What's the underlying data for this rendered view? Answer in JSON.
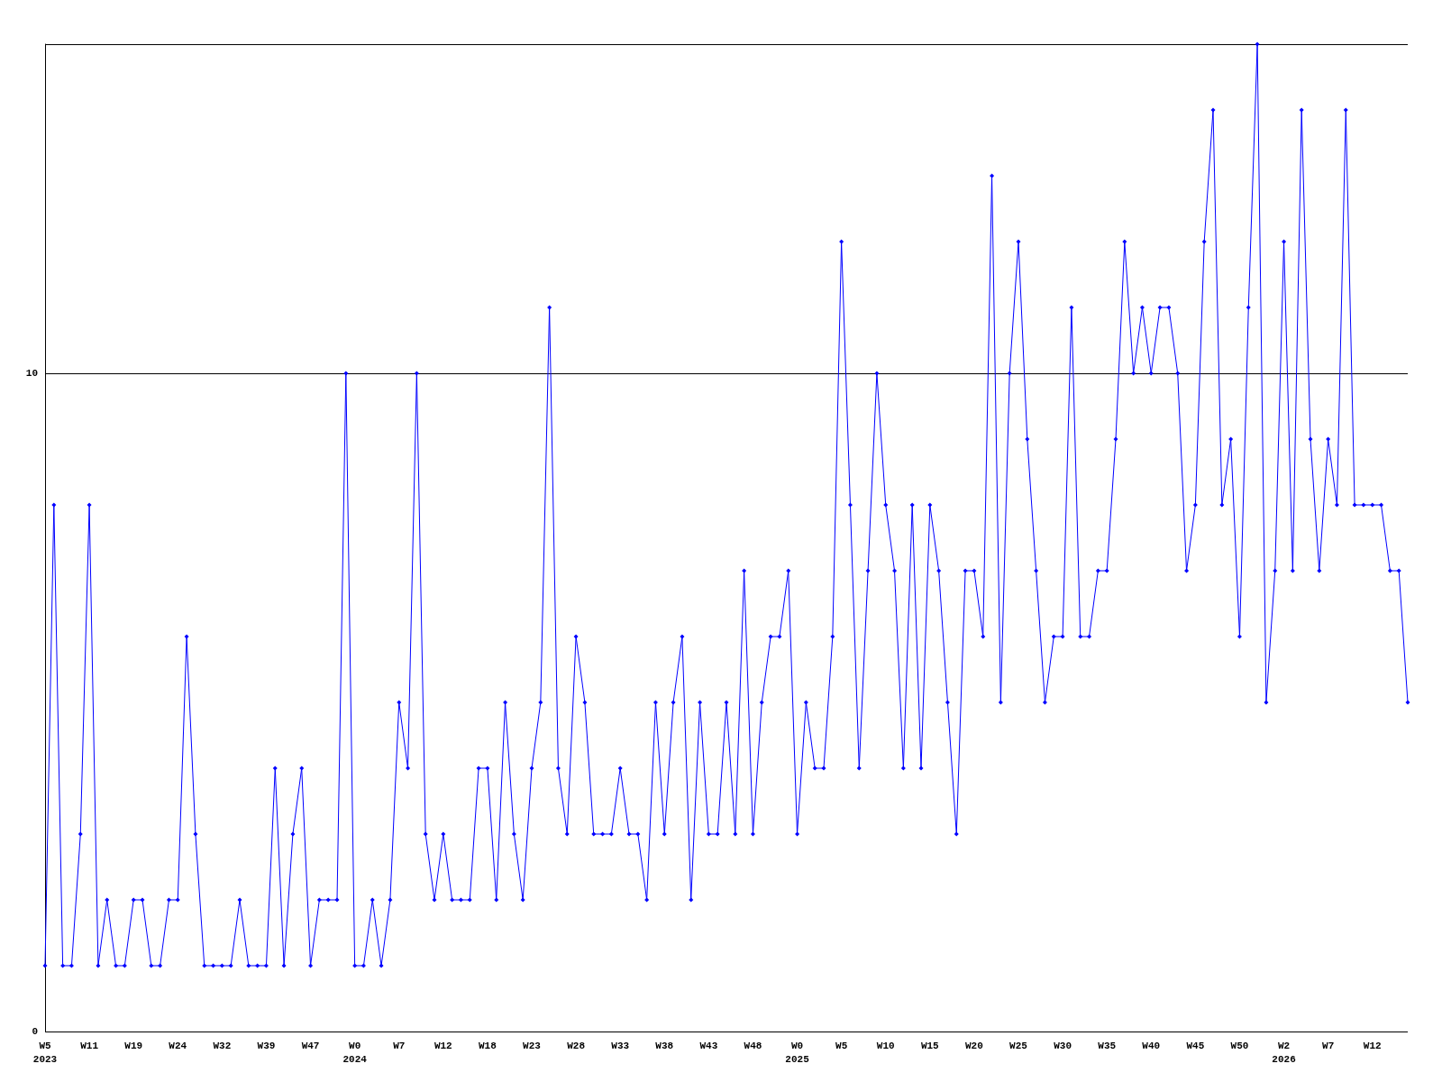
{
  "chart_data": {
    "type": "line",
    "categories": [
      "W5\n2023",
      null,
      null,
      null,
      null,
      "W11",
      null,
      null,
      null,
      null,
      "W19",
      null,
      null,
      null,
      null,
      "W24",
      null,
      null,
      null,
      null,
      "W32",
      null,
      null,
      null,
      null,
      "W39",
      null,
      null,
      null,
      null,
      "W47",
      null,
      null,
      null,
      null,
      "W0\n2024",
      null,
      null,
      null,
      null,
      "W7",
      null,
      null,
      null,
      null,
      "W12",
      null,
      null,
      null,
      null,
      "W18",
      null,
      null,
      null,
      null,
      "W23",
      null,
      null,
      null,
      null,
      "W28",
      null,
      null,
      null,
      null,
      "W33",
      null,
      null,
      null,
      null,
      "W38",
      null,
      null,
      null,
      null,
      "W43",
      null,
      null,
      null,
      null,
      "W48",
      null,
      null,
      null,
      null,
      "W0\n2025",
      null,
      null,
      null,
      null,
      "W5",
      null,
      null,
      null,
      null,
      "W10",
      null,
      null,
      null,
      null,
      "W15",
      null,
      null,
      null,
      null,
      "W20",
      null,
      null,
      null,
      null,
      "W25",
      null,
      null,
      null,
      null,
      "W30",
      null,
      null,
      null,
      null,
      "W35",
      null,
      null,
      null,
      null,
      "W40",
      null,
      null,
      null,
      null,
      "W45",
      null,
      null,
      null,
      null,
      "W50",
      null,
      null,
      null,
      null,
      "W2\n2026",
      null,
      null,
      null,
      null,
      "W7",
      null,
      null,
      null,
      null,
      "W12",
      null,
      null,
      null,
      null
    ],
    "series": [
      {
        "color": "#0000ff",
        "values": [
          1,
          8,
          1,
          1,
          3,
          8,
          1,
          2,
          1,
          1,
          2,
          2,
          1,
          1,
          2,
          2,
          6,
          3,
          1,
          1,
          1,
          1,
          2,
          1,
          1,
          1,
          4,
          1,
          3,
          4,
          1,
          2,
          2,
          2,
          10,
          1,
          1,
          2,
          1,
          2,
          5,
          4,
          10,
          3,
          2,
          3,
          2,
          2,
          2,
          4,
          4,
          2,
          5,
          3,
          2,
          4,
          5,
          11,
          4,
          3,
          6,
          5,
          3,
          3,
          3,
          4,
          3,
          3,
          2,
          5,
          3,
          5,
          6,
          2,
          5,
          3,
          3,
          5,
          3,
          7,
          3,
          5,
          6,
          6,
          7,
          3,
          5,
          4,
          4,
          6,
          12,
          8,
          4,
          7,
          10,
          8,
          7,
          4,
          8,
          4,
          8,
          7,
          5,
          3,
          7,
          7,
          6,
          13,
          5,
          10,
          12,
          9,
          7,
          5,
          6,
          6,
          11,
          6,
          6,
          7,
          7,
          9,
          12,
          10,
          11,
          10,
          11,
          11,
          10,
          7,
          8,
          12,
          14,
          8,
          9,
          6,
          11,
          15,
          5,
          7,
          12,
          7,
          14,
          9,
          7,
          9,
          8,
          14,
          8,
          8,
          8,
          8,
          7,
          7,
          5
        ]
      }
    ],
    "ylim": [
      0,
      15
    ],
    "yticks": [
      0,
      10
    ],
    "grid": "y",
    "marker": "diamond",
    "line_style": "solid"
  }
}
